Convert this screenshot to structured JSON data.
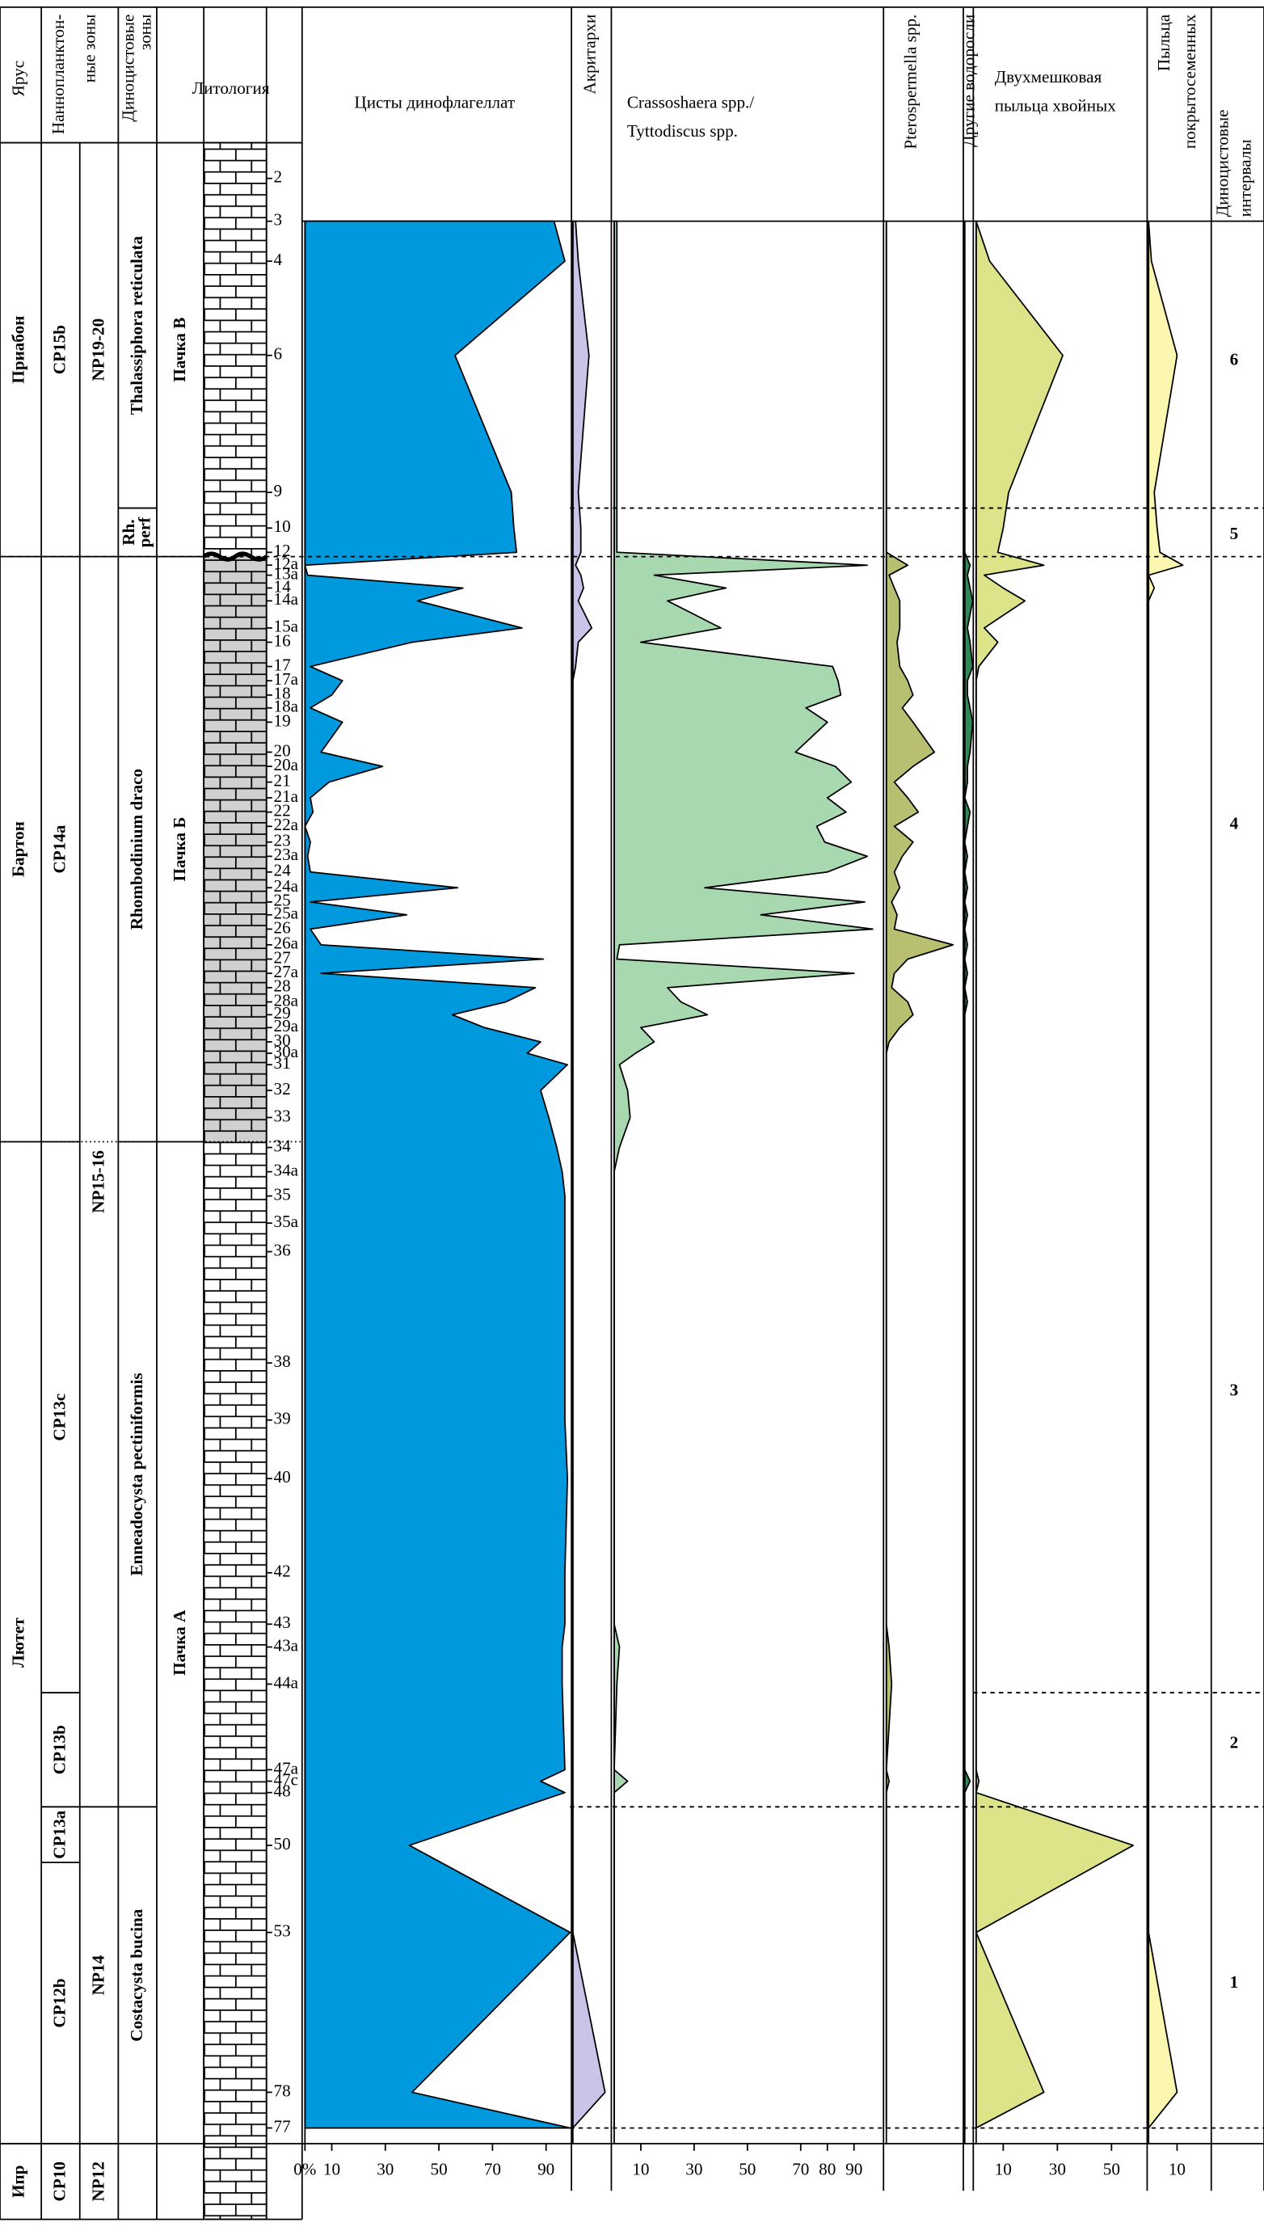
{
  "header": {
    "stage": "Ярус",
    "nanno": [
      "Наннопланктон-",
      "ные зоны"
    ],
    "dino_zones": [
      "Диноцистовые",
      "зоны"
    ],
    "lithology": "Литология",
    "intervals": [
      "Диноцистовые",
      "интервалы"
    ]
  },
  "stages": [
    "Приабон",
    "Бартон",
    "Лютет",
    "Ипр"
  ],
  "cp_zones": [
    "CP15b",
    "CP14a",
    "CP13c",
    "CP13b",
    "CP13a",
    "CP12b",
    "CP10"
  ],
  "np_zones": [
    "NP19-20",
    "NP15-16",
    "NP14",
    "NP12"
  ],
  "dino_zones": [
    [
      "Thalassiphora reticulata"
    ],
    [
      "Rh.",
      "perf"
    ],
    [
      "Rhombodinium draco"
    ],
    [
      "Enneadocysta pectiniformis"
    ],
    [
      "Costacysta bucina"
    ]
  ],
  "members": [
    "Пачка В",
    "Пачка Б",
    "Пачка А"
  ],
  "intervals": [
    6,
    5,
    4,
    3,
    2,
    1
  ],
  "chart_data": {
    "type": "area",
    "samples": [
      "2",
      "3",
      "4",
      "6",
      "9",
      "10",
      "12",
      "12a",
      "13a",
      "14",
      "14a",
      "15a",
      "16",
      "17",
      "17a",
      "18",
      "18a",
      "19",
      "20",
      "20a",
      "21",
      "21a",
      "22",
      "22a",
      "23",
      "23a",
      "24",
      "24a",
      "25",
      "25a",
      "26",
      "26a",
      "27",
      "27a",
      "28",
      "28a",
      "29",
      "29a",
      "30",
      "30a",
      "31",
      "32",
      "33",
      "34",
      "34a",
      "35",
      "35a",
      "36",
      "38",
      "39",
      "40",
      "42",
      "43",
      "43a",
      "44a",
      "47a",
      "47c",
      "48",
      "50",
      "53",
      "78",
      "77"
    ],
    "series": [
      {
        "name": [
          "Цисты динофлагеллат"
        ],
        "color": "#0099dd",
        "xticks": [
          {
            "value": 0,
            "label": "0%"
          },
          10,
          30,
          50,
          70,
          90
        ],
        "values": [
          null,
          93,
          97,
          56,
          77,
          78,
          79,
          0,
          1,
          59,
          42,
          81,
          40,
          2,
          14,
          10,
          2,
          14,
          6,
          29,
          9,
          2,
          3,
          0,
          2,
          1,
          2,
          57,
          2,
          38,
          2,
          6,
          89,
          6,
          86,
          75,
          55,
          67,
          88,
          83,
          98,
          88,
          91,
          94,
          96,
          97,
          97,
          97,
          97,
          97,
          98,
          97,
          97,
          96,
          96,
          97,
          88,
          97,
          39,
          99,
          40,
          99
        ]
      },
      {
        "name": [
          "Акритархи"
        ],
        "color": "#c9c5e8",
        "xticks": [],
        "values": [
          null,
          1,
          2,
          6,
          2,
          3,
          3,
          1,
          3,
          4,
          2,
          7,
          2,
          1,
          0,
          0,
          0,
          0,
          0,
          0,
          0,
          0,
          0,
          0,
          0,
          0,
          0,
          0,
          0,
          0,
          0,
          0,
          0,
          0,
          0,
          0,
          0,
          0,
          0,
          0,
          0,
          0,
          0,
          0,
          0,
          0,
          0,
          0,
          0,
          0,
          0,
          0,
          0,
          0,
          0,
          0,
          0,
          0,
          0,
          0,
          12,
          0
        ]
      },
      {
        "name": [
          "Crassoshaera spp./",
          "Tyttodiscus spp."
        ],
        "color": "#a8d8b0",
        "xticks": [
          10,
          30,
          50,
          70,
          80,
          90
        ],
        "values": [
          null,
          1,
          1,
          1,
          1,
          1,
          1,
          95,
          15,
          42,
          20,
          40,
          10,
          82,
          84,
          85,
          72,
          80,
          68,
          83,
          89,
          80,
          87,
          76,
          79,
          95,
          80,
          34,
          94,
          55,
          97,
          2,
          1,
          90,
          20,
          25,
          35,
          10,
          15,
          8,
          2,
          5,
          6,
          2,
          0,
          0,
          0,
          0,
          0,
          0,
          0,
          0,
          0,
          2,
          1,
          0,
          5,
          0,
          0,
          0,
          0,
          0
        ]
      },
      {
        "name": [
          "Pterospermella spp."
        ],
        "color": "#b8bf70",
        "xticks": [],
        "values": [
          null,
          0,
          0,
          0,
          0,
          0,
          0,
          8,
          1,
          3,
          5,
          5,
          4,
          5,
          8,
          10,
          6,
          10,
          18,
          10,
          3,
          8,
          12,
          3,
          10,
          6,
          3,
          5,
          2,
          4,
          3,
          25,
          8,
          3,
          2,
          8,
          10,
          5,
          1,
          0,
          0,
          0,
          0,
          0,
          0,
          0,
          0,
          0,
          0,
          0,
          0,
          0,
          0,
          1,
          2,
          0,
          1,
          0,
          0,
          0,
          0,
          0
        ]
      },
      {
        "name": [
          "Другие водоросли"
        ],
        "color": "#2e8b57",
        "xticks": [],
        "values": [
          null,
          0,
          0,
          0,
          0,
          0,
          0,
          2,
          1,
          2,
          3,
          1,
          2,
          3,
          1,
          1,
          2,
          3,
          2,
          1,
          1,
          0,
          2,
          1,
          0,
          1,
          0,
          1,
          0,
          1,
          0,
          1,
          0,
          1,
          0,
          1,
          0,
          0,
          0,
          0,
          0,
          0,
          0,
          0,
          0,
          0,
          0,
          0,
          0,
          0,
          0,
          0,
          0,
          0,
          0,
          0,
          2,
          0,
          0,
          0,
          0,
          0
        ]
      },
      {
        "name": [
          "Двухмешковая",
          "пыльца хвойных"
        ],
        "color": "#dde388",
        "xticks": [
          10,
          30,
          50
        ],
        "values": [
          null,
          0,
          5,
          32,
          12,
          10,
          8,
          25,
          3,
          10,
          18,
          3,
          8,
          1,
          0,
          0,
          0,
          0,
          0,
          0,
          0,
          0,
          0,
          0,
          0,
          0,
          0,
          0,
          0,
          0,
          0,
          0,
          0,
          0,
          0,
          0,
          0,
          0,
          0,
          0,
          0,
          0,
          0,
          0,
          0,
          0,
          0,
          0,
          0,
          0,
          0,
          0,
          0,
          0,
          0,
          0,
          1,
          0,
          58,
          0,
          25,
          0
        ]
      },
      {
        "name": [
          "Пыльца",
          "покрытосеменных"
        ],
        "color": "#fbf6b0",
        "xticks": [
          10
        ],
        "values": [
          null,
          0,
          1,
          10,
          2,
          3,
          4,
          12,
          0,
          2,
          0,
          0,
          0,
          0,
          0,
          0,
          0,
          0,
          0,
          0,
          0,
          0,
          0,
          0,
          0,
          0,
          0,
          0,
          0,
          0,
          0,
          0,
          0,
          0,
          0,
          0,
          0,
          0,
          0,
          0,
          0,
          0,
          0,
          0,
          0,
          0,
          0,
          0,
          0,
          0,
          0,
          0,
          0,
          0,
          0,
          0,
          0,
          0,
          0,
          0,
          10,
          0
        ]
      }
    ]
  }
}
